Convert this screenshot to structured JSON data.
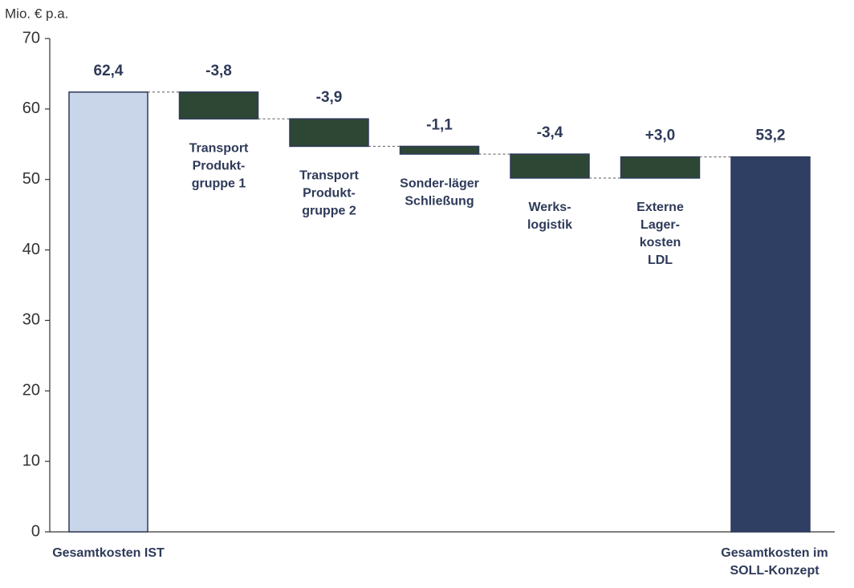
{
  "chart_data": {
    "type": "waterfall",
    "ylabel": "Mio. € p.a.",
    "categories": [
      [
        "Gesamtkosten IST"
      ],
      [
        "Transport",
        "Produkt-",
        "gruppe 1"
      ],
      [
        "Transport",
        "Produkt-",
        "gruppe 2"
      ],
      [
        "Sonder-läger",
        "Schließung"
      ],
      [
        "Werks-",
        "logistik"
      ],
      [
        "Externe",
        "Lager-",
        "kosten",
        "LDL"
      ],
      [
        "Gesamtkosten im",
        "SOLL-Konzept"
      ]
    ],
    "values": [
      62.4,
      -3.8,
      -3.9,
      -1.1,
      -3.4,
      3.0,
      53.2
    ],
    "value_labels": [
      "62,4",
      "-3,8",
      "-3,9",
      "-1,1",
      "-3,4",
      "+3,0",
      "53,2"
    ],
    "colors": [
      "#c9d5e8",
      "#2d4734",
      "#2d4734",
      "#2d4734",
      "#2d4734",
      "#2d4734",
      "#2e3f63"
    ],
    "ylim": [
      0,
      70
    ],
    "yticks": [
      0,
      10,
      20,
      30,
      40,
      50,
      60,
      70
    ],
    "grid": false
  }
}
